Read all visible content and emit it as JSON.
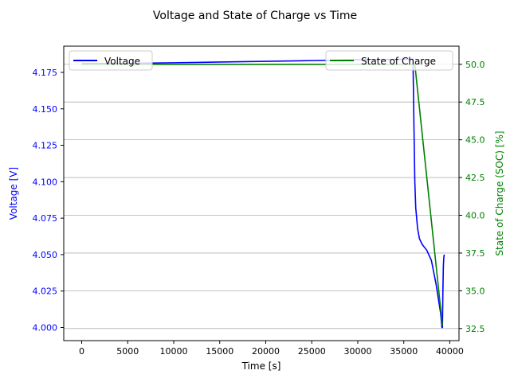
{
  "chart_data": {
    "type": "line",
    "title": "Voltage and State of Charge vs Time",
    "xlabel": "Time [s]",
    "xlim": [
      -1950,
      41000
    ],
    "x_ticks": [
      0,
      5000,
      10000,
      15000,
      20000,
      25000,
      30000,
      35000,
      40000
    ],
    "x_tick_labels": [
      "0",
      "5000",
      "10000",
      "15000",
      "20000",
      "25000",
      "30000",
      "35000",
      "40000"
    ],
    "grid": true,
    "left_axis": {
      "label": "Voltage [V]",
      "color": "#0000ff",
      "ylim": [
        3.991,
        4.193
      ],
      "ticks": [
        4.0,
        4.025,
        4.05,
        4.075,
        4.1,
        4.125,
        4.15,
        4.175
      ],
      "tick_labels": [
        "4.000",
        "4.025",
        "4.050",
        "4.075",
        "4.100",
        "4.125",
        "4.150",
        "4.175"
      ]
    },
    "right_axis": {
      "label": "State of Charge (SOC) [%]",
      "color": "#008000",
      "ylim": [
        31.7,
        51.2
      ],
      "ticks": [
        32.5,
        35.0,
        37.5,
        40.0,
        42.5,
        45.0,
        47.5,
        50.0
      ],
      "tick_labels": [
        "32.5",
        "35.0",
        "37.5",
        "40.0",
        "42.5",
        "45.0",
        "47.5",
        "50.0"
      ]
    },
    "series": [
      {
        "name": "Voltage",
        "axis": "left",
        "color": "#0000ff",
        "x": [
          0,
          5000,
          10000,
          15000,
          20000,
          25000,
          30000,
          35000,
          36000,
          36100,
          36200,
          36300,
          36500,
          36700,
          37000,
          37500,
          38000,
          38500,
          39000,
          39150,
          39200,
          39250,
          39300,
          39350,
          39400
        ],
        "y": [
          4.181,
          4.1812,
          4.1816,
          4.1821,
          4.1826,
          4.1831,
          4.1836,
          4.184,
          4.1842,
          4.14,
          4.1,
          4.082,
          4.068,
          4.061,
          4.057,
          4.053,
          4.046,
          4.03,
          4.01,
          4.0,
          4.0,
          4.025,
          4.042,
          4.048,
          4.05
        ]
      },
      {
        "name": "State of Charge",
        "axis": "right",
        "color": "#008000",
        "x": [
          0,
          36200,
          39200
        ],
        "y": [
          50.0,
          50.0,
          32.7
        ]
      }
    ],
    "legends": [
      {
        "entries": [
          "Voltage"
        ],
        "position": "upper-left"
      },
      {
        "entries": [
          "State of Charge"
        ],
        "position": "upper-right"
      }
    ]
  }
}
